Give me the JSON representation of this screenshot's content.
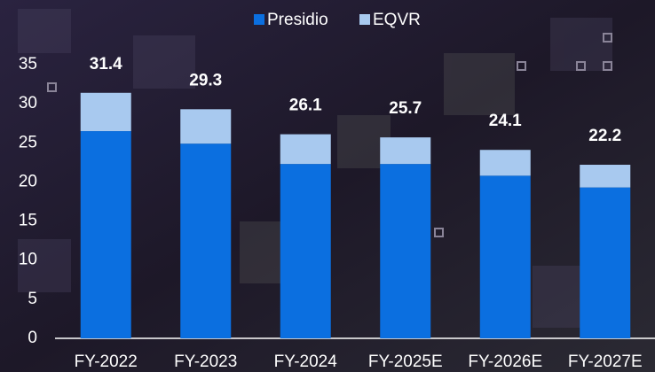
{
  "chart_data": {
    "type": "stacked_bar",
    "categories": [
      "FY-2022",
      "FY-2023",
      "FY-2024",
      "FY-2025E",
      "FY-2026E",
      "FY-2027E"
    ],
    "series": [
      {
        "name": "Presidio",
        "color": "#0b6fe0",
        "values": [
          26.5,
          24.9,
          22.3,
          22.3,
          20.8,
          19.3
        ]
      },
      {
        "name": "EQVR",
        "color": "#a8c9ef",
        "values": [
          4.9,
          4.4,
          3.8,
          3.4,
          3.3,
          2.9
        ]
      }
    ],
    "totals": [
      31.4,
      29.3,
      26.1,
      25.7,
      24.1,
      22.2
    ],
    "ylim": [
      0,
      35
    ],
    "yticks": [
      0,
      5,
      10,
      15,
      20,
      25,
      30,
      35
    ],
    "legend": "top"
  }
}
